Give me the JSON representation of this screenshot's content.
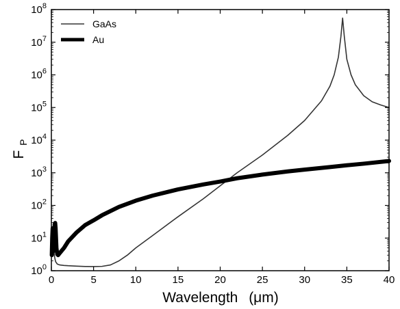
{
  "chart_data": {
    "type": "line",
    "xlabel": "Wavelength",
    "xlabel_unit": "(μm)",
    "ylabel": "F",
    "ylabel_subscript": "P",
    "xlim": [
      0,
      40
    ],
    "ylim": [
      1,
      100000000
    ],
    "yscale": "log",
    "grid": false,
    "legend_position": "top-left",
    "x_ticks": [
      0,
      5,
      10,
      15,
      20,
      25,
      30,
      35,
      40
    ],
    "x_tick_labels": [
      "0",
      "5",
      "10",
      "15",
      "20",
      "25",
      "30",
      "35",
      "40"
    ],
    "y_ticks": [
      1,
      10,
      100,
      1000,
      10000,
      100000,
      1000000,
      10000000,
      100000000
    ],
    "y_tick_mantissa": [
      "10",
      "10",
      "10",
      "10",
      "10",
      "10",
      "10",
      "10",
      "10"
    ],
    "y_tick_exponents": [
      "0",
      "1",
      "2",
      "3",
      "4",
      "5",
      "6",
      "7",
      "8"
    ],
    "series": [
      {
        "name": "GaAs",
        "color": "#333333",
        "line": "thin",
        "x": [
          0.05,
          0.1,
          0.15,
          0.2,
          0.3,
          0.4,
          0.5,
          0.7,
          1,
          1.5,
          2,
          3,
          4,
          5,
          6,
          7,
          8,
          9,
          10,
          12,
          15,
          18,
          20,
          22,
          25,
          28,
          30,
          32,
          33,
          33.5,
          34,
          34.3,
          34.5,
          34.7,
          35,
          35.5,
          36,
          37,
          38,
          39,
          40
        ],
        "y": [
          10,
          3,
          8,
          15,
          4,
          2.5,
          1.9,
          1.6,
          1.5,
          1.45,
          1.42,
          1.38,
          1.35,
          1.34,
          1.36,
          1.5,
          2,
          3,
          5,
          12,
          45,
          160,
          400,
          1000,
          3500,
          14000,
          40000,
          160000,
          450000,
          1000000,
          3500000,
          15000000,
          55000000,
          15000000,
          3000000,
          1000000,
          500000,
          230000,
          150000,
          120000,
          100000
        ]
      },
      {
        "name": "Au",
        "color": "#000000",
        "line": "thick",
        "x": [
          0.05,
          0.1,
          0.15,
          0.2,
          0.25,
          0.3,
          0.35,
          0.4,
          0.45,
          0.5,
          0.55,
          0.6,
          0.7,
          0.8,
          1,
          1.5,
          2,
          3,
          4,
          5,
          6,
          8,
          10,
          12,
          15,
          18,
          20,
          22,
          25,
          28,
          30,
          33,
          35,
          37,
          40
        ],
        "y": [
          3,
          10,
          20,
          8,
          4,
          8,
          18,
          27,
          29,
          20,
          10,
          5,
          3.2,
          3,
          3.5,
          5,
          8,
          15,
          25,
          35,
          50,
          90,
          140,
          200,
          310,
          440,
          540,
          680,
          880,
          1100,
          1250,
          1500,
          1700,
          1900,
          2300
        ]
      }
    ]
  }
}
